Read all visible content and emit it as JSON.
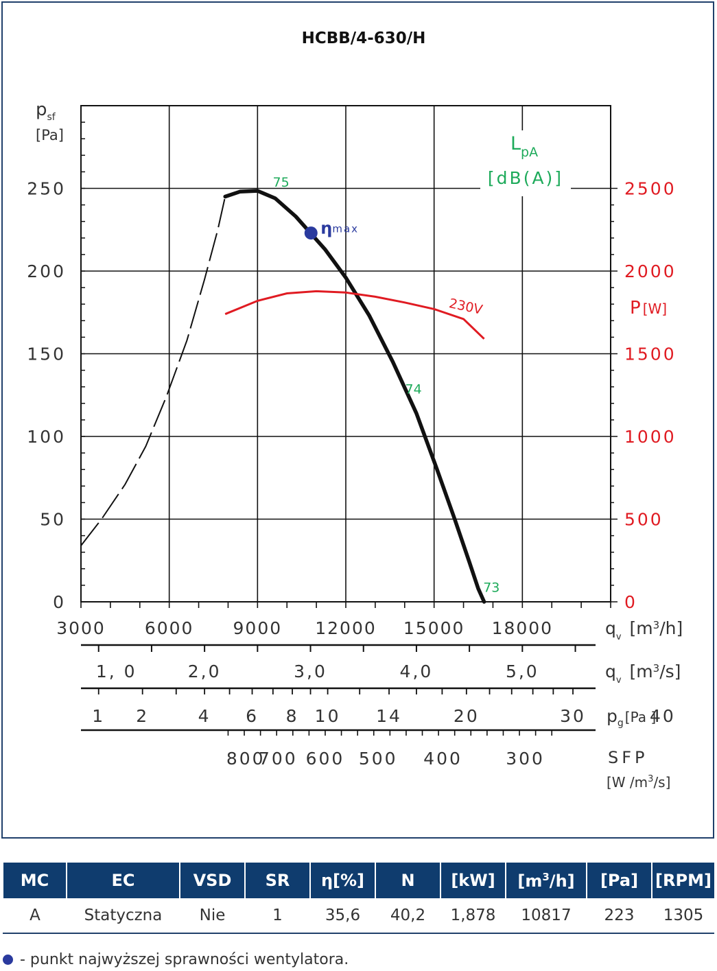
{
  "chart_data": {
    "type": "line",
    "title": "HCBB/4-630/H",
    "y_axis": {
      "label_main": "p",
      "label_sub": "sf",
      "unit": "[Pa]",
      "range": [
        0,
        300
      ],
      "ticks": [
        0,
        50,
        100,
        150,
        200,
        250
      ]
    },
    "x_axis_flow_m3h": {
      "label_main": "q",
      "label_sub": "v",
      "unit_pre": "[m",
      "unit_sup": "3",
      "unit_post": "/h]",
      "range": [
        3000,
        21000
      ],
      "tick_labels": [
        "3000",
        "6000",
        "9000",
        "12000",
        "15000",
        "18000"
      ]
    },
    "x_axis_flow_m3s": {
      "label_main": "q",
      "label_sub": "v",
      "unit_pre": "[m",
      "unit_sup": "3",
      "unit_post": "/s]",
      "tick_labels": [
        {
          "text": "1, 0",
          "value": 1.0
        },
        {
          "text": "2,0",
          "value": 2.0
        },
        {
          "text": "3,0",
          "value": 3.0
        },
        {
          "text": "4,0",
          "value": 4.0
        },
        {
          "text": "5,0",
          "value": 5.0
        }
      ]
    },
    "x_axis_dynamic_pressure": {
      "label_main": "p",
      "label_sub": "g",
      "unit": "[Pa ]",
      "tick_labels": [
        {
          "text": "1",
          "value": 1
        },
        {
          "text": "2",
          "value": 2
        },
        {
          "text": "4",
          "value": 4
        },
        {
          "text": "6",
          "value": 6
        },
        {
          "text": "8",
          "value": 8
        },
        {
          "text": "10",
          "value": 10
        },
        {
          "text": "14",
          "value": 14
        },
        {
          "text": "20",
          "value": 20
        },
        {
          "text": "30",
          "value": 30
        },
        {
          "text": "40",
          "value": 40
        }
      ]
    },
    "x_axis_sfp": {
      "label": "SFP",
      "unit_pre": "[W /m",
      "unit_sup": "3",
      "unit_post": "/s]",
      "tick_labels": [
        {
          "text": "800",
          "flow": 8600
        },
        {
          "text": "700",
          "flow": 9700
        },
        {
          "text": "600",
          "flow": 11300
        },
        {
          "text": "500",
          "flow": 13100
        },
        {
          "text": "400",
          "flow": 15300
        },
        {
          "text": "300",
          "flow": 18100
        }
      ]
    },
    "power_axis": {
      "label_main": "P",
      "label_unit": "[W]",
      "range": [
        0,
        3000
      ],
      "tick_labels": [
        "0",
        "500",
        "1000",
        "1500",
        "2000",
        "2500"
      ]
    },
    "noise_label": {
      "main": "L",
      "sub": "pA",
      "unit": "[dB(A)]"
    },
    "series": [
      {
        "role": "pressure-curve",
        "points": [
          [
            7900,
            245
          ],
          [
            8400,
            248
          ],
          [
            9000,
            248.5
          ],
          [
            9600,
            244
          ],
          [
            10300,
            233
          ],
          [
            10800,
            223
          ],
          [
            11300,
            213
          ],
          [
            12000,
            196
          ],
          [
            12800,
            173
          ],
          [
            13600,
            145
          ],
          [
            14400,
            114
          ],
          [
            15100,
            80
          ],
          [
            15700,
            50
          ],
          [
            16200,
            24
          ],
          [
            16500,
            8
          ],
          [
            16700,
            0
          ]
        ]
      },
      {
        "role": "unstable-dashed",
        "points": [
          [
            3000,
            34
          ],
          [
            3700,
            50
          ],
          [
            4500,
            71
          ],
          [
            5200,
            94
          ],
          [
            5900,
            124
          ],
          [
            6600,
            158
          ],
          [
            7200,
            195
          ],
          [
            7650,
            225
          ],
          [
            7900,
            245
          ]
        ]
      },
      {
        "name": "230V",
        "axis": "power",
        "points": [
          [
            7900,
            1740
          ],
          [
            9000,
            1820
          ],
          [
            10000,
            1865
          ],
          [
            11000,
            1878
          ],
          [
            12000,
            1870
          ],
          [
            13000,
            1845
          ],
          [
            14000,
            1810
          ],
          [
            15000,
            1770
          ],
          [
            16000,
            1710
          ],
          [
            16700,
            1590
          ]
        ]
      }
    ],
    "noise_annotations": [
      {
        "text": "75",
        "x": 9800,
        "y": 251
      },
      {
        "text": "74",
        "x": 14300,
        "y": 126
      },
      {
        "text": "73",
        "x": 16950,
        "y": 6
      }
    ],
    "efficiency_point": {
      "x": 10817,
      "y": 223,
      "label_main": "η",
      "label_sub": "max"
    },
    "grid": true
  },
  "table": {
    "headers": {
      "mc": "MC",
      "ec": "EC",
      "vsd": "VSD",
      "sr": "SR",
      "eta": "η[%]",
      "n": "N",
      "kw": "[kW]",
      "m3h_pre": "[m",
      "m3h_sup": "3",
      "m3h_post": "/h]",
      "pa": "[Pa]",
      "rpm": "[RPM]"
    },
    "row": {
      "mc": "A",
      "ec": "Statyczna",
      "vsd": "Nie",
      "sr": "1",
      "eta": "35,6",
      "n": "40,2",
      "kw": "1,878",
      "m3h": "10817",
      "pa": "223",
      "rpm": "1305"
    }
  },
  "footnote": "- punkt najwyższej sprawności wentylatora.",
  "colors": {
    "frame": "#1f3f6a",
    "table_header": "#0f3c6e",
    "noise": "#1daa5a",
    "power": "#e01b22",
    "efficiency_dot": "#2a3a9e"
  }
}
